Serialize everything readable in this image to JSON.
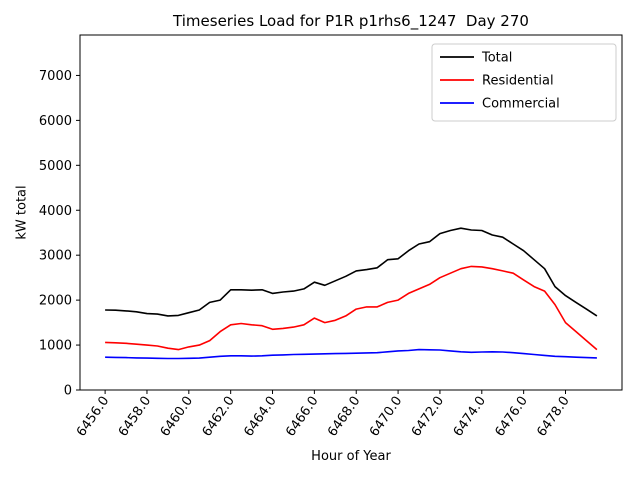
{
  "figure": {
    "title": "Timeseries Load for P1R p1rhs6_1247  Day 270",
    "xlabel": "Hour of Year",
    "ylabel": "kW total"
  },
  "legend": {
    "position": "upper right",
    "entries": [
      {
        "label": "Total",
        "color": "#000000"
      },
      {
        "label": "Residential",
        "color": "#ff0000"
      },
      {
        "label": "Commercial",
        "color": "#0000ff"
      }
    ]
  },
  "chart_data": {
    "type": "line",
    "title": "Timeseries Load for P1R p1rhs6_1247  Day 270",
    "xlabel": "Hour of Year",
    "ylabel": "kW total",
    "grid": false,
    "legend_position": "upper right",
    "xlim": [
      6454.8,
      6480.7
    ],
    "ylim": [
      0,
      7900
    ],
    "xticks": [
      6456.0,
      6458.0,
      6460.0,
      6462.0,
      6464.0,
      6466.0,
      6468.0,
      6470.0,
      6472.0,
      6474.0,
      6476.0,
      6478.0
    ],
    "yticks": [
      0,
      1000,
      2000,
      3000,
      4000,
      5000,
      6000,
      7000
    ],
    "x": [
      6456.0,
      6456.5,
      6457.0,
      6457.5,
      6458.0,
      6458.5,
      6459.0,
      6459.5,
      6460.0,
      6460.5,
      6461.0,
      6461.5,
      6462.0,
      6462.5,
      6463.0,
      6463.5,
      6464.0,
      6464.5,
      6465.0,
      6465.5,
      6466.0,
      6466.5,
      6467.0,
      6467.5,
      6468.0,
      6468.5,
      6469.0,
      6469.5,
      6470.0,
      6470.5,
      6471.0,
      6471.5,
      6472.0,
      6472.5,
      6473.0,
      6473.5,
      6474.0,
      6474.5,
      6475.0,
      6475.5,
      6476.0,
      6476.5,
      6477.0,
      6477.5,
      6478.0,
      6478.5,
      6479.0,
      6479.5
    ],
    "series": [
      {
        "name": "Total",
        "color": "#000000",
        "values": [
          1780,
          1775,
          1760,
          1740,
          1700,
          1690,
          1650,
          1660,
          1720,
          1780,
          1950,
          2000,
          2230,
          2230,
          2220,
          2230,
          2150,
          2180,
          2200,
          2250,
          2400,
          2330,
          2430,
          2530,
          2650,
          2680,
          2720,
          2900,
          2920,
          3100,
          3250,
          3300,
          3480,
          3550,
          3600,
          3560,
          3550,
          3450,
          3400,
          3250,
          3100,
          2900,
          2700,
          2300,
          2100,
          1950,
          1800,
          1650
        ]
      },
      {
        "name": "Residential",
        "color": "#ff0000",
        "values": [
          1060,
          1050,
          1040,
          1020,
          1000,
          980,
          930,
          900,
          960,
          1000,
          1100,
          1300,
          1450,
          1480,
          1450,
          1430,
          1350,
          1370,
          1400,
          1450,
          1600,
          1500,
          1550,
          1650,
          1800,
          1850,
          1850,
          1950,
          2000,
          2150,
          2250,
          2350,
          2500,
          2600,
          2700,
          2750,
          2740,
          2700,
          2650,
          2600,
          2450,
          2300,
          2200,
          1900,
          1500,
          1300,
          1100,
          900
        ]
      },
      {
        "name": "Commercial",
        "color": "#0000ff",
        "values": [
          730,
          725,
          720,
          715,
          710,
          705,
          700,
          700,
          705,
          710,
          730,
          750,
          760,
          760,
          755,
          760,
          775,
          780,
          790,
          795,
          800,
          805,
          810,
          815,
          820,
          825,
          830,
          850,
          870,
          880,
          900,
          895,
          890,
          870,
          850,
          840,
          845,
          850,
          845,
          830,
          810,
          790,
          770,
          750,
          740,
          730,
          720,
          715
        ]
      }
    ]
  }
}
